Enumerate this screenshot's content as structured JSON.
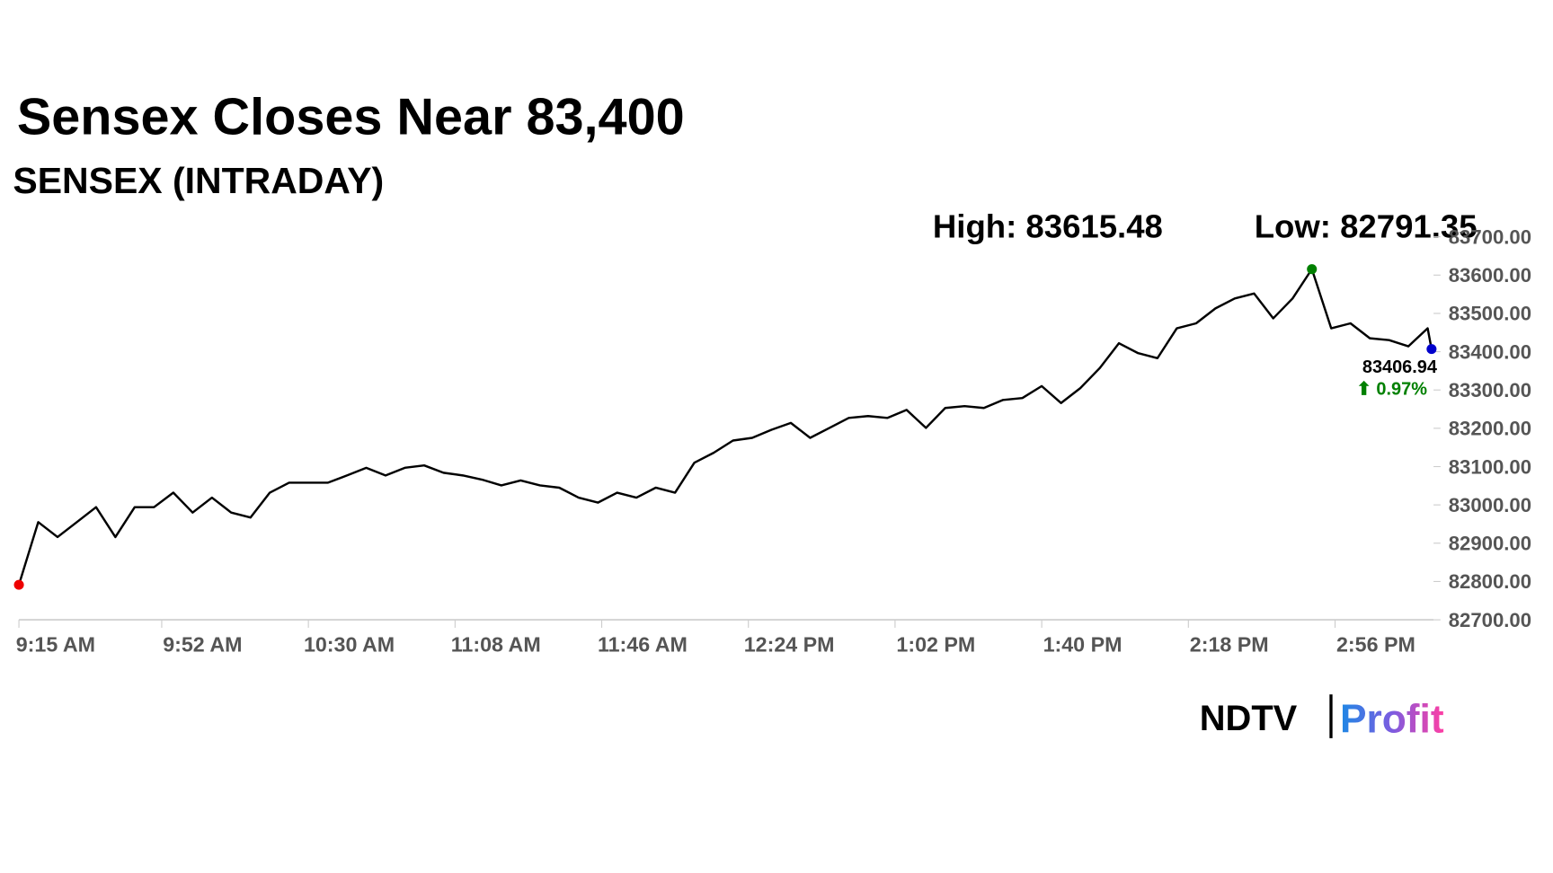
{
  "chart_data": {
    "type": "line",
    "title": "Sensex Closes Near 83,400",
    "subtitle": "SENSEX (INTRADAY)",
    "high_label": "High: 83615.48",
    "low_label": "Low: 82791.35",
    "last_label": "83406.94",
    "change_label": "⬆ 0.97%",
    "x": [
      "9:15 AM",
      "9:20 AM",
      "9:25 AM",
      "9:30 AM",
      "9:35 AM",
      "9:40 AM",
      "9:45 AM",
      "9:50 AM",
      "9:55 AM",
      "10:00 AM",
      "10:05 AM",
      "10:10 AM",
      "10:15 AM",
      "10:20 AM",
      "10:25 AM",
      "10:30 AM",
      "10:35 AM",
      "10:40 AM",
      "10:45 AM",
      "10:50 AM",
      "10:55 AM",
      "11:00 AM",
      "11:05 AM",
      "11:10 AM",
      "11:15 AM",
      "11:20 AM",
      "11:25 AM",
      "11:30 AM",
      "11:35 AM",
      "11:40 AM",
      "11:45 AM",
      "11:50 AM",
      "11:55 AM",
      "12:00 PM",
      "12:05 PM",
      "12:10 PM",
      "12:15 PM",
      "12:20 PM",
      "12:25 PM",
      "12:30 PM",
      "12:35 PM",
      "12:40 PM",
      "12:45 PM",
      "12:50 PM",
      "12:55 PM",
      "1:00 PM",
      "1:05 PM",
      "1:10 PM",
      "1:15 PM",
      "1:20 PM",
      "1:25 PM",
      "1:30 PM",
      "1:35 PM",
      "1:40 PM",
      "1:45 PM",
      "1:50 PM",
      "1:55 PM",
      "2:00 PM",
      "2:05 PM",
      "2:10 PM",
      "2:15 PM",
      "2:20 PM",
      "2:25 PM",
      "2:30 PM",
      "2:35 PM",
      "2:40 PM",
      "2:45 PM",
      "2:50 PM",
      "2:55 PM",
      "3:00 PM",
      "3:05 PM",
      "3:10 PM",
      "3:15 PM",
      "3:20 PM",
      "3:21 PM"
    ],
    "series": [
      {
        "name": "SENSEX",
        "color": "#000000",
        "values": [
          82791.35,
          82955,
          82916,
          82955,
          82994,
          82916,
          82994,
          82994,
          83032,
          82980,
          83019,
          82980,
          82967,
          83032,
          83058,
          83058,
          83058,
          83077,
          83097,
          83077,
          83097,
          83103,
          83084,
          83077,
          83066,
          83051,
          83064,
          83051,
          83045,
          83019,
          83006,
          83032,
          83019,
          83045,
          83032,
          83110,
          83136,
          83168,
          83175,
          83196,
          83214,
          83175,
          83201,
          83227,
          83232,
          83227,
          83248,
          83201,
          83253,
          83258,
          83253,
          83274,
          83279,
          83310,
          83266,
          83305,
          83357,
          83422,
          83396,
          83383,
          83461,
          83474,
          83513,
          83539,
          83552,
          83487,
          83539,
          83615.48,
          83461,
          83474,
          83435,
          83430,
          83414,
          83461,
          83406.94
        ]
      }
    ],
    "high_index": 67,
    "low_index": 0,
    "last_index": 74,
    "high_color": "#008000",
    "low_color": "#ee0000",
    "last_color": "#0000cc",
    "change_color": "#008000",
    "xlim": [
      "9:15 AM",
      "3:21 PM"
    ],
    "xticks": [
      "9:15 AM",
      "9:52 AM",
      "10:30 AM",
      "11:08 AM",
      "11:46 AM",
      "12:24 PM",
      "1:02 PM",
      "1:40 PM",
      "2:18 PM",
      "2:56 PM"
    ],
    "ylim": [
      82700,
      83700
    ],
    "yticks": [
      {
        "value": 82700,
        "label": "82700.00"
      },
      {
        "value": 82800,
        "label": "82800.00"
      },
      {
        "value": 82900,
        "label": "82900.00"
      },
      {
        "value": 83000,
        "label": "83000.00"
      },
      {
        "value": 83100,
        "label": "83100.00"
      },
      {
        "value": 83200,
        "label": "83200.00"
      },
      {
        "value": 83300,
        "label": "83300.00"
      },
      {
        "value": 83400,
        "label": "83400.00"
      },
      {
        "value": 83500,
        "label": "83500.00"
      },
      {
        "value": 83600,
        "label": "83600.00"
      },
      {
        "value": 83700,
        "label": "83700.00"
      }
    ],
    "grid": false
  },
  "logo": {
    "left": "NDTV",
    "right": "Profit"
  }
}
